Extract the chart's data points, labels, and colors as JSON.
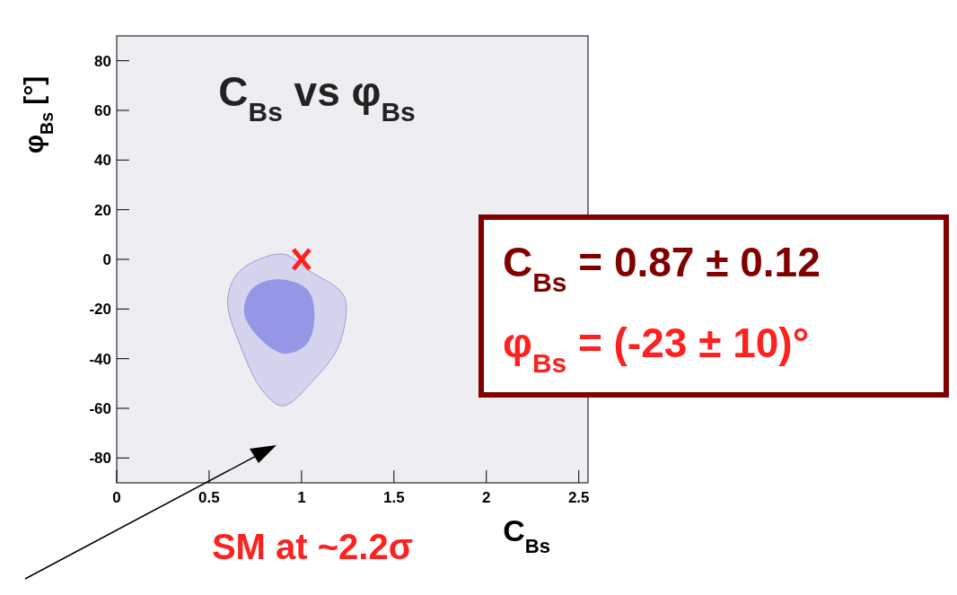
{
  "chart_data": {
    "type": "area",
    "title": "C$_{Bs}$ vs φ$_{Bs}$",
    "xlabel": "C$_{Bs}$",
    "ylabel": "φ$_{Bs}$ [°]",
    "xlim": [
      0,
      2.55
    ],
    "xticks": [
      0,
      0.5,
      1,
      1.5,
      2,
      2.5
    ],
    "ylim": [
      -90,
      90
    ],
    "yticks": [
      -80,
      -60,
      -40,
      -20,
      0,
      20,
      40,
      60,
      80
    ],
    "grid": false,
    "series": [
      {
        "color": "#d4d4ee",
        "x": [
          0.91,
          1.05,
          1.2,
          1.24,
          1.2,
          1.06,
          0.9,
          0.79,
          0.67,
          0.6,
          0.65,
          0.77,
          0.91
        ],
        "values": [
          2,
          -5,
          -12,
          -17,
          -35,
          -49,
          -59,
          -53,
          -35,
          -17,
          -6,
          0,
          2
        ]
      },
      {
        "color": "#9696e6",
        "x": [
          0.86,
          1.03,
          1.07,
          1.03,
          0.91,
          0.79,
          0.69,
          0.73,
          0.86
        ],
        "values": [
          -8,
          -12,
          -22,
          -34,
          -38,
          -33,
          -22,
          -12,
          -8
        ]
      },
      {
        "type": "scatter",
        "marker": "cross",
        "color": "#ff2020",
        "x": [
          1
        ],
        "values": [
          0
        ]
      }
    ],
    "annotations": [
      "SM at ~2.2σ",
      "C$_{Bs}$ = 0.87 ± 0.12",
      "φ$_{Bs}$ = (-23 ± 10)°"
    ]
  }
}
